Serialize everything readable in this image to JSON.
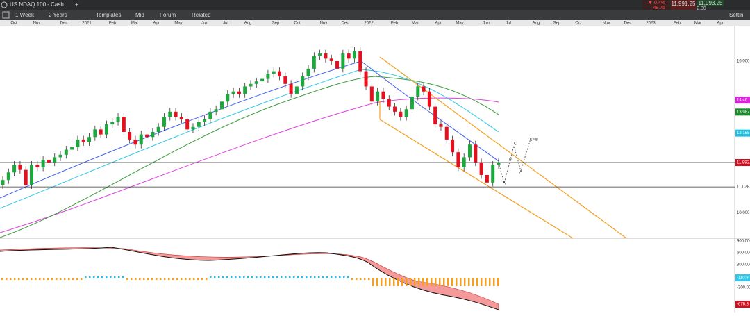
{
  "header": {
    "symbol": "US NDAQ 100 - Cash",
    "change_pct": "▼ 0.4%",
    "change_abs": "48.75",
    "bid": "11,991.25",
    "ask": "11,993.25",
    "spread": "2.00"
  },
  "toolbar": {
    "interval": "1 Week",
    "range": "2 Years",
    "templates": "Templates",
    "price_type": "Mid",
    "forum": "Forum",
    "related": "Related",
    "settings": "Settin"
  },
  "time_axis": {
    "labels": [
      "Oct",
      "Nov",
      "Dec",
      "2021",
      "Feb",
      "Mar",
      "Apr",
      "May",
      "Jun",
      "Jul",
      "Aug",
      "Sep",
      "Oct",
      "Nov",
      "Dec",
      "2022",
      "Feb",
      "Mar",
      "Apr",
      "May",
      "Jun",
      "Jul",
      "Aug",
      "Sep",
      "Oct",
      "Nov",
      "Dec",
      "2023",
      "Feb",
      "Mar",
      "Apr"
    ]
  },
  "chart": {
    "ylim": [
      9000,
      17400
    ],
    "open": [
      11100,
      11300,
      11600,
      11900,
      11700,
      11100,
      11900,
      11800,
      12100,
      12000,
      12200,
      12300,
      12500,
      12600,
      12900,
      12800,
      13000,
      13300,
      13100,
      13500,
      13600,
      13800,
      13200,
      12900,
      12700,
      13100,
      13000,
      13200,
      13400,
      13800,
      14000,
      13800,
      13700,
      13300,
      13400,
      13600,
      13700,
      14000,
      14100,
      14400,
      14700,
      14800,
      14700,
      15000,
      15100,
      15200,
      15300,
      15500,
      15600,
      15400,
      15100,
      14700,
      15000,
      15400,
      15700,
      16200,
      16300,
      16100,
      16000,
      15700,
      16300,
      16100,
      16400,
      15600,
      15000,
      14400,
      14800,
      14500,
      14200,
      14000,
      13800,
      14100,
      14600,
      15000,
      14800,
      14200,
      13500,
      13400,
      12900,
      12400,
      11800,
      12200,
      12700,
      12000,
      11500,
      11200,
      11900
    ],
    "high": [
      11450,
      11750,
      12050,
      12050,
      11850,
      12050,
      12050,
      12250,
      12250,
      12350,
      12450,
      12650,
      12750,
      13050,
      13050,
      13150,
      13450,
      13450,
      13650,
      13750,
      13950,
      13950,
      13350,
      13050,
      13250,
      13250,
      13350,
      13550,
      13950,
      14150,
      14150,
      13950,
      13850,
      13550,
      13750,
      13850,
      14150,
      14250,
      14550,
      14850,
      14950,
      14950,
      15150,
      15250,
      15350,
      15450,
      15650,
      15750,
      15750,
      15550,
      15250,
      15150,
      15550,
      15850,
      16350,
      16450,
      16450,
      16250,
      16150,
      16450,
      16450,
      16550,
      16550,
      15750,
      15150,
      14950,
      14950,
      14650,
      14350,
      14150,
      14250,
      14750,
      15150,
      15150,
      14950,
      14350,
      13650,
      13550,
      13050,
      12550,
      12350,
      12850,
      12850,
      12150,
      11650,
      12050,
      12150
    ],
    "low": [
      10950,
      11150,
      11450,
      11550,
      10950,
      10950,
      11650,
      11650,
      11850,
      11850,
      12050,
      12150,
      12350,
      12450,
      12650,
      12650,
      12850,
      12950,
      12950,
      13350,
      13450,
      13050,
      12750,
      12550,
      12550,
      12850,
      12850,
      13050,
      13250,
      13650,
      13650,
      13550,
      13150,
      13150,
      13250,
      13450,
      13550,
      13850,
      13950,
      14250,
      14550,
      14550,
      14550,
      14850,
      14950,
      15050,
      15150,
      15350,
      15250,
      14950,
      14550,
      14550,
      14850,
      15250,
      15550,
      16050,
      15950,
      15850,
      15550,
      15550,
      15950,
      15950,
      15450,
      14850,
      14250,
      14250,
      14350,
      14050,
      13850,
      13650,
      13650,
      13950,
      14450,
      14650,
      14050,
      13350,
      13250,
      12750,
      12250,
      11650,
      11650,
      12050,
      11850,
      11350,
      11050,
      11050,
      11750
    ],
    "close": [
      11300,
      11600,
      11900,
      11700,
      11100,
      11900,
      11800,
      12100,
      12000,
      12200,
      12300,
      12500,
      12600,
      12900,
      12800,
      13000,
      13300,
      13100,
      13500,
      13600,
      13800,
      13200,
      12900,
      12700,
      13100,
      13000,
      13200,
      13400,
      13800,
      14000,
      13800,
      13700,
      13300,
      13400,
      13600,
      13700,
      14000,
      14100,
      14400,
      14700,
      14800,
      14700,
      15000,
      15100,
      15200,
      15300,
      15500,
      15600,
      15400,
      15100,
      14700,
      15000,
      15400,
      15700,
      16200,
      16300,
      16100,
      16000,
      15700,
      16300,
      16100,
      16400,
      15600,
      15000,
      14400,
      14800,
      14500,
      14200,
      14000,
      13800,
      14100,
      14600,
      15000,
      14800,
      14200,
      13500,
      13400,
      12900,
      12400,
      11800,
      12200,
      12700,
      12000,
      11500,
      11200,
      11900,
      12000
    ],
    "price_labels": [
      {
        "value": 16000,
        "label": "16,000."
      },
      {
        "value": 14460,
        "label": "14,46"
      },
      {
        "value": 13987,
        "label": "13,987"
      },
      {
        "value": 13155,
        "label": "13,155"
      },
      {
        "value": 11992,
        "label": "11,992."
      },
      {
        "value": 11028,
        "label": "11,028."
      },
      {
        "value": 10000,
        "label": "10,000."
      }
    ],
    "wave_labels": [
      "B",
      "C",
      "A",
      "A",
      "C",
      "B"
    ]
  },
  "macd": {
    "labels": [
      "900.000",
      "600.000",
      "300.000",
      "-110.9",
      "-300.000",
      "-676.3"
    ]
  }
}
